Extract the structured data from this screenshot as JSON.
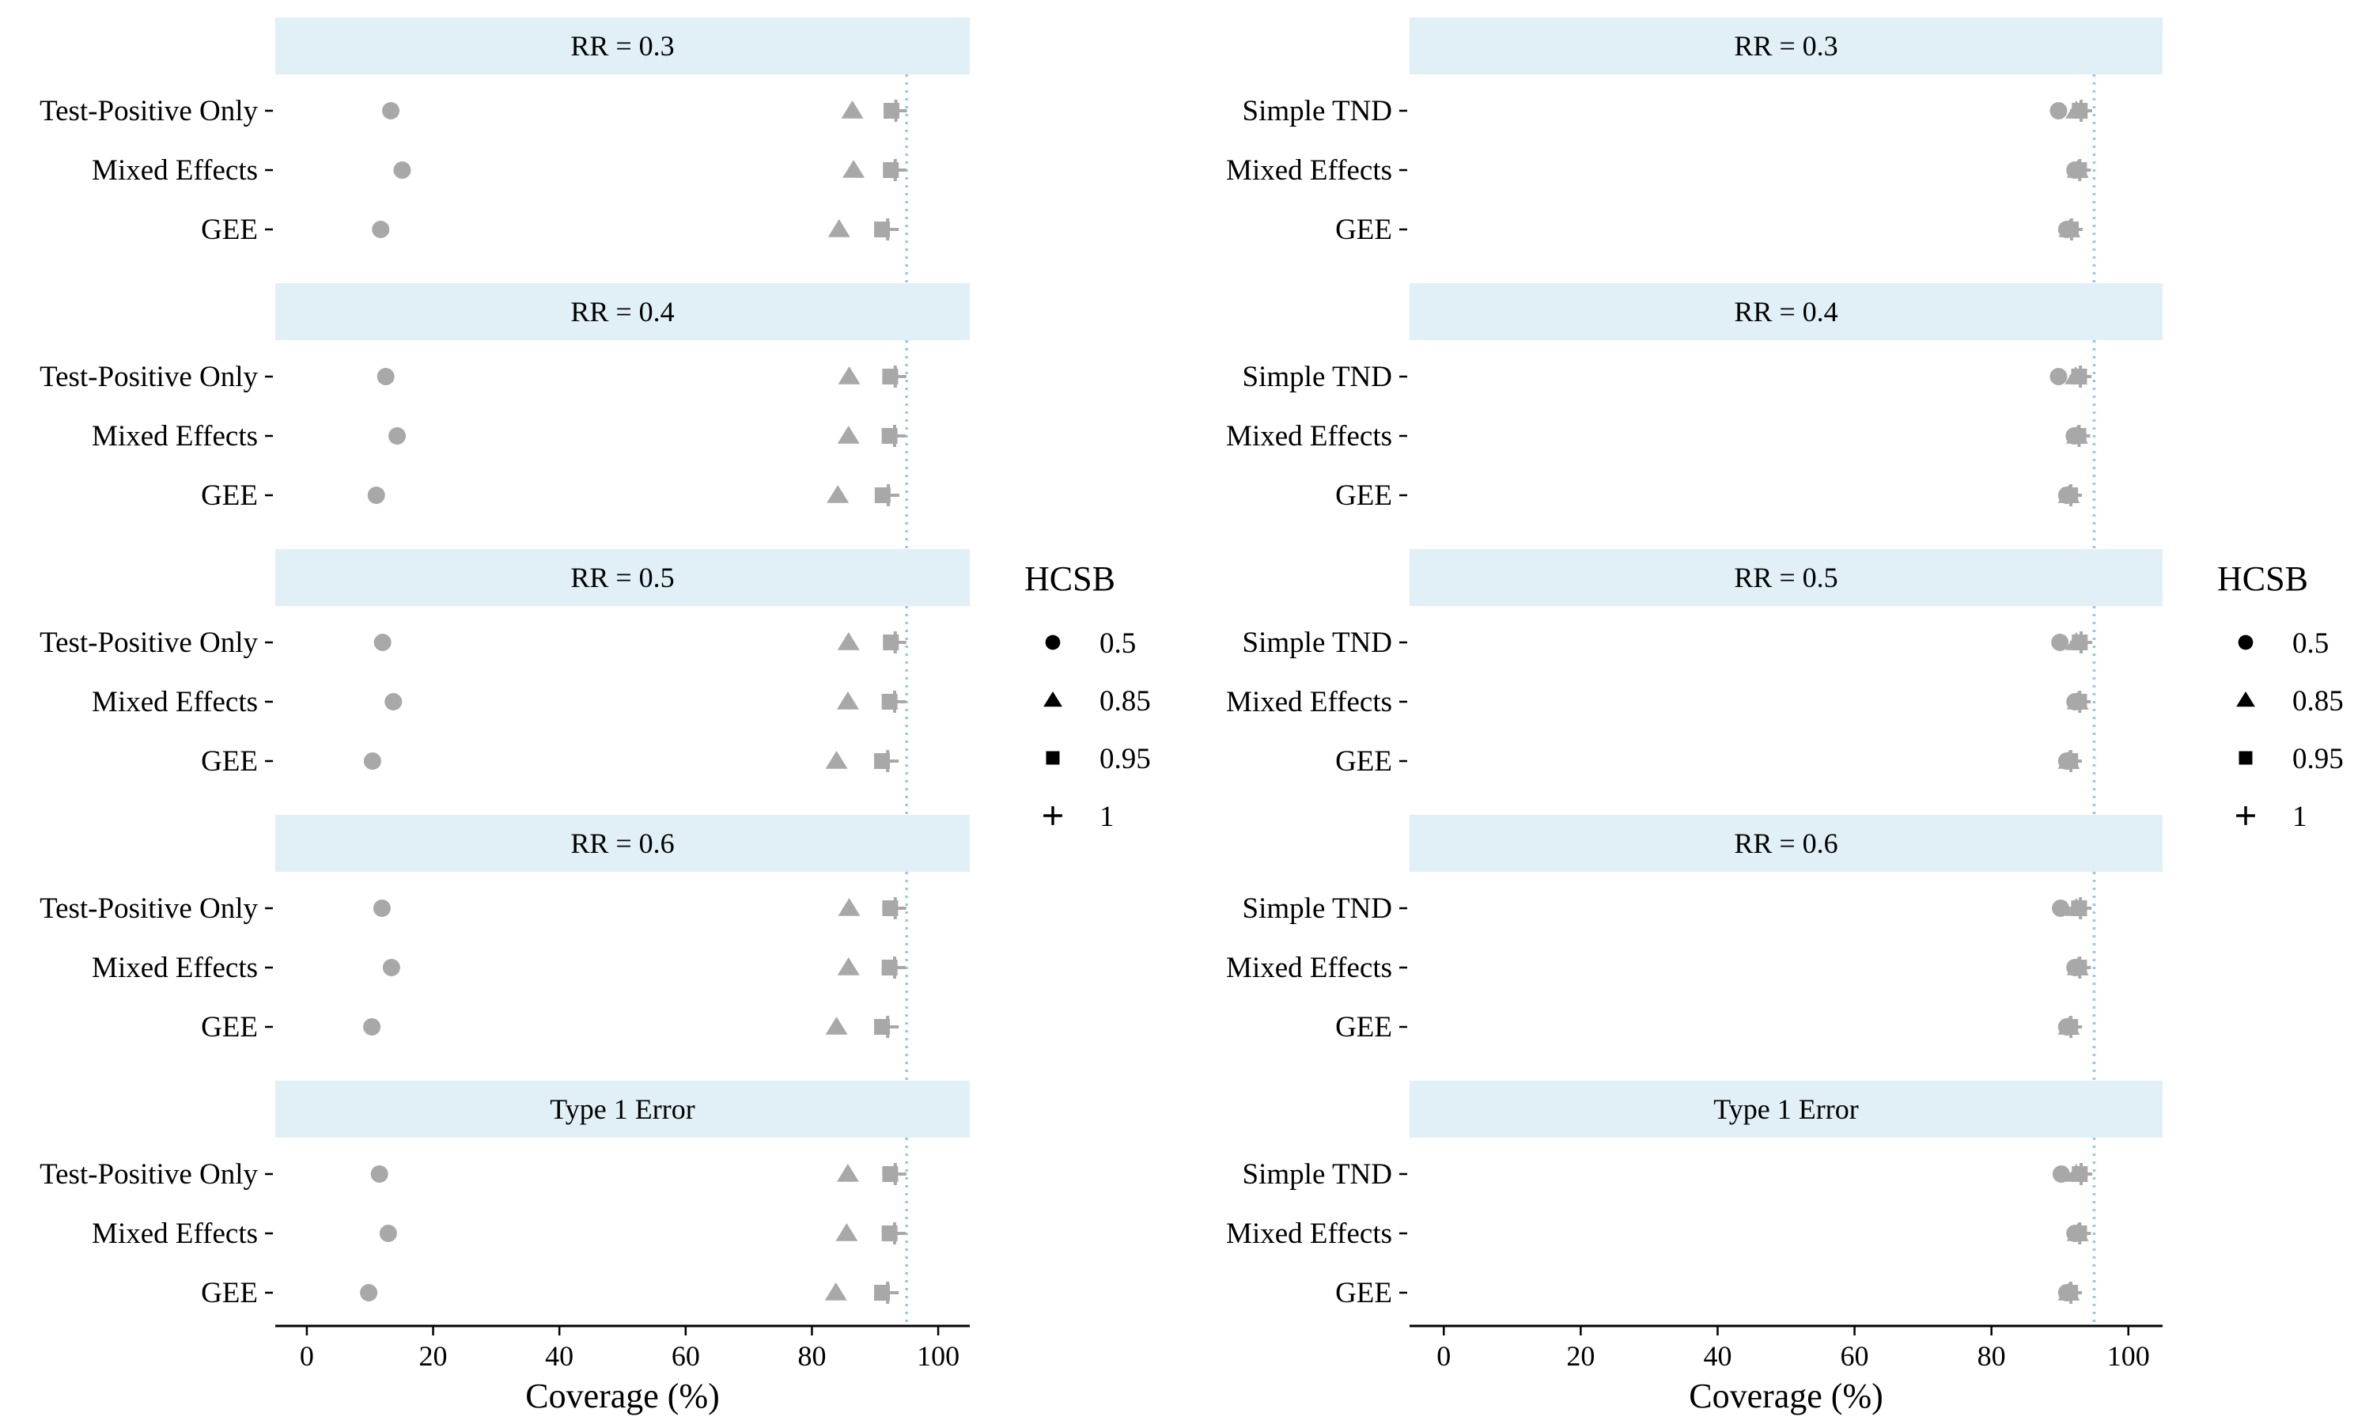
{
  "figure": {
    "legend_title": "HCSB",
    "legend_items": [
      {
        "label": "0.5",
        "shape": "circle"
      },
      {
        "label": "0.85",
        "shape": "triangle"
      },
      {
        "label": "0.95",
        "shape": "square"
      },
      {
        "label": "1",
        "shape": "plus"
      }
    ],
    "reference_line_value": 95,
    "colors": {
      "strip_fill": "#e0f0f6",
      "marker": "#a8a8a8",
      "reference_line": "#8ecae6",
      "legend_marker": "#000000",
      "axis": "#000000",
      "text": "#000000"
    }
  },
  "chart_data": [
    {
      "type": "scatter",
      "title": "",
      "xlabel": "Coverage (%)",
      "ylabel": "",
      "xlim": [
        -5,
        105
      ],
      "xticks": [
        0,
        20,
        40,
        60,
        80,
        100
      ],
      "grid": false,
      "legend_position": "right",
      "methods": [
        "Test-Positive Only",
        "Mixed Effects",
        "GEE"
      ],
      "series_names": [
        "0.5",
        "0.85",
        "0.95",
        "1"
      ],
      "facets": [
        {
          "label": "RR = 0.3",
          "points": {
            "Test-Positive Only": [
              13.3,
              86.4,
              92.6,
              93.3
            ],
            "Mixed Effects": [
              15.1,
              86.6,
              92.5,
              93.2
            ],
            "GEE": [
              11.7,
              84.3,
              91.1,
              92.0
            ]
          }
        },
        {
          "label": "RR = 0.4",
          "points": {
            "Test-Positive Only": [
              12.5,
              85.9,
              92.4,
              93.2
            ],
            "Mixed Effects": [
              14.3,
              85.8,
              92.3,
              93.1
            ],
            "GEE": [
              11.0,
              84.1,
              91.2,
              92.1
            ]
          }
        },
        {
          "label": "RR = 0.5",
          "points": {
            "Test-Positive Only": [
              12.0,
              85.8,
              92.5,
              93.2
            ],
            "Mixed Effects": [
              13.7,
              85.7,
              92.3,
              93.1
            ],
            "GEE": [
              10.4,
              83.9,
              91.1,
              92.0
            ]
          }
        },
        {
          "label": "RR = 0.6",
          "points": {
            "Test-Positive Only": [
              11.9,
              85.9,
              92.4,
              93.2
            ],
            "Mixed Effects": [
              13.4,
              85.8,
              92.3,
              93.1
            ],
            "GEE": [
              10.3,
              83.9,
              91.1,
              92.0
            ]
          }
        },
        {
          "label": "Type 1 Error",
          "points": {
            "Test-Positive Only": [
              11.5,
              85.7,
              92.4,
              93.2
            ],
            "Mixed Effects": [
              12.9,
              85.5,
              92.3,
              93.1
            ],
            "GEE": [
              9.8,
              83.8,
              91.1,
              92.0
            ]
          }
        }
      ]
    },
    {
      "type": "scatter",
      "title": "",
      "xlabel": "Coverage (%)",
      "ylabel": "",
      "xlim": [
        -5,
        105
      ],
      "xticks": [
        0,
        20,
        40,
        60,
        80,
        100
      ],
      "grid": false,
      "legend_position": "right",
      "methods": [
        "Simple TND",
        "Mixed Effects",
        "GEE"
      ],
      "series_names": [
        "0.5",
        "0.85",
        "0.95",
        "1"
      ],
      "facets": [
        {
          "label": "RR = 0.3",
          "points": {
            "Simple TND": [
              89.8,
              92.4,
              92.9,
              93.1
            ],
            "Mixed Effects": [
              92.2,
              92.6,
              92.8,
              92.9
            ],
            "GEE": [
              91.0,
              91.4,
              91.6,
              91.7
            ]
          }
        },
        {
          "label": "RR = 0.4",
          "points": {
            "Simple TND": [
              89.8,
              92.3,
              92.8,
              93.0
            ],
            "Mixed Effects": [
              92.1,
              92.5,
              92.7,
              92.8
            ],
            "GEE": [
              91.0,
              91.3,
              91.5,
              91.6
            ]
          }
        },
        {
          "label": "RR = 0.5",
          "points": {
            "Simple TND": [
              90.0,
              92.4,
              92.9,
              93.1
            ],
            "Mixed Effects": [
              92.2,
              92.6,
              92.8,
              92.9
            ],
            "GEE": [
              91.0,
              91.3,
              91.5,
              91.6
            ]
          }
        },
        {
          "label": "RR = 0.6",
          "points": {
            "Simple TND": [
              90.1,
              92.4,
              92.8,
              93.0
            ],
            "Mixed Effects": [
              92.2,
              92.6,
              92.8,
              92.9
            ],
            "GEE": [
              91.0,
              91.3,
              91.5,
              91.6
            ]
          }
        },
        {
          "label": "Type 1 Error",
          "points": {
            "Simple TND": [
              90.2,
              92.4,
              92.9,
              93.1
            ],
            "Mixed Effects": [
              92.2,
              92.6,
              92.8,
              92.9
            ],
            "GEE": [
              91.0,
              91.3,
              91.5,
              91.6
            ]
          }
        }
      ]
    }
  ]
}
